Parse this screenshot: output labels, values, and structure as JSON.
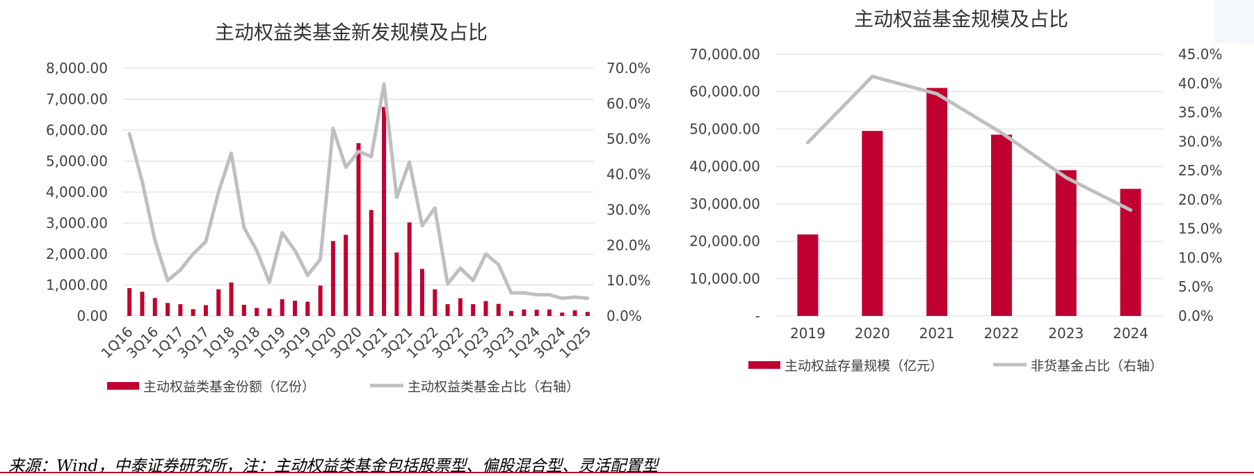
{
  "colors": {
    "bar": "#c00031",
    "line": "#bfbfbf",
    "grid": "#d9d9d9",
    "accent_rule": "#c0002e"
  },
  "chart_data": [
    {
      "type": "bar+line",
      "title": "主动权益类基金新发规模及占比",
      "y_left_ticks": [
        "0.00",
        "1,000.00",
        "2,000.00",
        "3,000.00",
        "4,000.00",
        "5,000.00",
        "6,000.00",
        "7,000.00",
        "8,000.00"
      ],
      "y_left_range": [
        0,
        8000
      ],
      "y_right_ticks": [
        "0.0%",
        "10.0%",
        "20.0%",
        "30.0%",
        "40.0%",
        "50.0%",
        "60.0%",
        "70.0%"
      ],
      "y_right_range": [
        0,
        70
      ],
      "categories": [
        "1Q16",
        "2Q16",
        "3Q16",
        "4Q16",
        "1Q17",
        "2Q17",
        "3Q17",
        "4Q17",
        "1Q18",
        "2Q18",
        "3Q18",
        "4Q18",
        "1Q19",
        "2Q19",
        "3Q19",
        "4Q19",
        "1Q20",
        "2Q20",
        "3Q20",
        "4Q20",
        "1Q21",
        "2Q21",
        "3Q21",
        "4Q21",
        "1Q22",
        "2Q22",
        "3Q22",
        "4Q22",
        "1Q23",
        "2Q23",
        "3Q23",
        "4Q23",
        "1Q24",
        "2Q24",
        "3Q24",
        "4Q24",
        "1Q25"
      ],
      "x_tick_labels": [
        "1Q16",
        "3Q16",
        "1Q17",
        "3Q17",
        "1Q18",
        "3Q18",
        "1Q19",
        "3Q19",
        "1Q20",
        "3Q20",
        "1Q21",
        "3Q21",
        "1Q22",
        "3Q22",
        "1Q23",
        "3Q23",
        "1Q24",
        "3Q24",
        "1Q25"
      ],
      "series": [
        {
          "name": "主动权益类基金份额（亿份）",
          "kind": "bar",
          "axis": "left",
          "values": [
            900,
            780,
            580,
            420,
            380,
            220,
            350,
            860,
            1080,
            360,
            260,
            240,
            540,
            490,
            460,
            980,
            2420,
            2620,
            5580,
            3420,
            6750,
            2050,
            3020,
            1520,
            860,
            380,
            570,
            380,
            480,
            390,
            160,
            210,
            200,
            210,
            110,
            180,
            130
          ]
        },
        {
          "name": "主动权益类基金占比（右轴）",
          "kind": "line",
          "axis": "right",
          "values": [
            51.5,
            38,
            21.5,
            10,
            13,
            17.5,
            21,
            35,
            46,
            25,
            18.5,
            9.5,
            23.5,
            18.5,
            11.5,
            16,
            53,
            42,
            46.5,
            45,
            65.5,
            33.5,
            43.5,
            25.5,
            30.5,
            9,
            13.5,
            10,
            17.5,
            14.5,
            6.5,
            6.5,
            6,
            6,
            5,
            5.3,
            5
          ]
        }
      ]
    },
    {
      "type": "bar+line",
      "title": "主动权益基金规模及占比",
      "y_left_ticks": [
        "-",
        "10,000.00",
        "20,000.00",
        "30,000.00",
        "40,000.00",
        "50,000.00",
        "60,000.00",
        "70,000.00"
      ],
      "y_left_range": [
        0,
        70000
      ],
      "y_right_ticks": [
        "0.0%",
        "5.0%",
        "10.0%",
        "15.0%",
        "20.0%",
        "25.0%",
        "30.0%",
        "35.0%",
        "40.0%",
        "45.0%"
      ],
      "y_right_range": [
        0,
        45
      ],
      "categories": [
        "2019",
        "2020",
        "2021",
        "2022",
        "2023",
        "2024"
      ],
      "series": [
        {
          "name": "主动权益存量规模（亿元）",
          "kind": "bar",
          "axis": "left",
          "values": [
            21800,
            49500,
            61000,
            48500,
            39000,
            34000
          ]
        },
        {
          "name": "非货基金占比（右轴）",
          "kind": "line",
          "axis": "right",
          "values": [
            29.8,
            41.2,
            38.2,
            31.5,
            23.8,
            18.2
          ]
        }
      ]
    }
  ],
  "source_note": "来源：Wind，中泰证券研究所，注：主动权益类基金包括股票型、偏股混合型、灵活配置型"
}
